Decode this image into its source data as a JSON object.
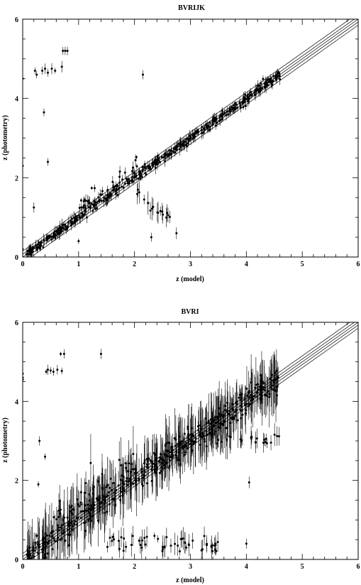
{
  "chart_data": [
    {
      "type": "scatter",
      "title": "BVRIJK",
      "xlabel": "z (model)",
      "ylabel": "z (photometry)",
      "xlim": [
        0,
        6
      ],
      "ylim": [
        0,
        6
      ],
      "xticks": [
        0,
        1,
        2,
        3,
        4,
        5,
        6
      ],
      "yticks": [
        0,
        2,
        4,
        6
      ],
      "reference_lines": "y = x with offset bands",
      "main_trend": {
        "x_range": [
          0.05,
          4.6
        ],
        "scatter_sigma": 0.12
      },
      "features": {
        "low_z_excess": {
          "x_range": [
            1.0,
            2.05
          ],
          "y_offset": 0.35
        },
        "catastrophic_branch": [
          [
            2.05,
            1.65
          ],
          [
            2.2,
            1.4
          ],
          [
            2.3,
            1.2
          ],
          [
            2.45,
            1.15
          ],
          [
            2.55,
            1.1
          ],
          [
            2.6,
            1.0
          ]
        ]
      },
      "outliers": [
        [
          0.0,
          4.5
        ],
        [
          0.0,
          2.3
        ],
        [
          0.0,
          0.2
        ],
        [
          0.22,
          4.7
        ],
        [
          0.25,
          4.6
        ],
        [
          0.35,
          4.7
        ],
        [
          0.4,
          4.75
        ],
        [
          0.45,
          4.65
        ],
        [
          0.52,
          4.75
        ],
        [
          0.58,
          4.7
        ],
        [
          0.7,
          4.8
        ],
        [
          0.72,
          5.2
        ],
        [
          0.76,
          5.2
        ],
        [
          0.8,
          5.2
        ],
        [
          0.38,
          3.65
        ],
        [
          0.45,
          2.4
        ],
        [
          0.2,
          1.25
        ],
        [
          2.15,
          4.6
        ],
        [
          2.3,
          0.5
        ],
        [
          2.75,
          0.6
        ],
        [
          1.0,
          0.4
        ]
      ]
    },
    {
      "type": "scatter",
      "title": "BVRI",
      "xlabel": "z (model)",
      "ylabel": "z (photometry)",
      "xlim": [
        0,
        6
      ],
      "ylim": [
        0,
        6
      ],
      "xticks": [
        0,
        1,
        2,
        3,
        4,
        5,
        6
      ],
      "yticks": [
        0,
        2,
        4,
        6
      ],
      "reference_lines": "y = x with offset bands",
      "main_trend": {
        "x_range": [
          0.05,
          4.6
        ],
        "scatter_sigma": 0.35
      },
      "features": {
        "low_z_excess": {
          "x_range": [
            0.5,
            2.0
          ],
          "y_offset": 0.6
        },
        "low_photo_z_band": {
          "x_range": [
            1.5,
            3.5
          ],
          "y_range": [
            0.2,
            0.6
          ]
        },
        "catastrophic_branch": [
          [
            3.5,
            3.0
          ],
          [
            3.7,
            3.1
          ],
          [
            3.9,
            3.0
          ],
          [
            4.05,
            3.1
          ],
          [
            4.15,
            3.0
          ],
          [
            4.3,
            3.0
          ],
          [
            4.4,
            3.0
          ],
          [
            4.55,
            3.1
          ]
        ]
      },
      "outliers": [
        [
          0.0,
          4.7
        ],
        [
          0.0,
          4.6
        ],
        [
          0.0,
          4.55
        ],
        [
          0.42,
          4.75
        ],
        [
          0.45,
          4.8
        ],
        [
          0.5,
          4.78
        ],
        [
          0.55,
          4.75
        ],
        [
          0.62,
          4.8
        ],
        [
          0.7,
          4.77
        ],
        [
          0.68,
          5.2
        ],
        [
          0.74,
          5.2
        ],
        [
          1.4,
          5.2
        ],
        [
          0.3,
          3.0
        ],
        [
          0.4,
          2.6
        ],
        [
          0.28,
          1.9
        ],
        [
          4.05,
          1.95
        ],
        [
          4.0,
          0.4
        ],
        [
          3.45,
          0.4
        ],
        [
          0.25,
          0.6
        ]
      ]
    }
  ]
}
